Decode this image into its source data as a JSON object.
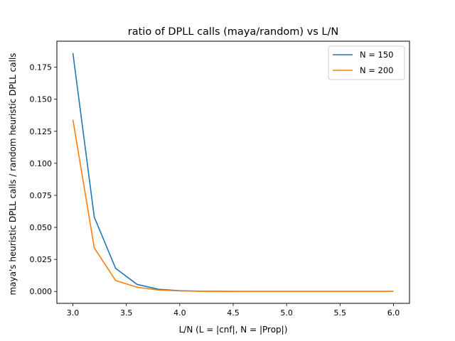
{
  "chart_data": {
    "type": "line",
    "title": "ratio of DPLL calls (maya/random) vs L/N",
    "xlabel": "L/N (L = |cnf|, N = |Prop|)",
    "ylabel": "maya's heuristic DPLL calls / random heuristic DPLL calls",
    "xlim": [
      2.85,
      6.15
    ],
    "ylim": [
      -0.0093,
      0.1953
    ],
    "xticks": [
      3.0,
      3.5,
      4.0,
      4.5,
      5.0,
      5.5,
      6.0
    ],
    "xtick_labels": [
      "3.0",
      "3.5",
      "4.0",
      "4.5",
      "5.0",
      "5.5",
      "6.0"
    ],
    "yticks": [
      0.0,
      0.025,
      0.05,
      0.075,
      0.1,
      0.125,
      0.15,
      0.175
    ],
    "ytick_labels": [
      "0.000",
      "0.025",
      "0.050",
      "0.075",
      "0.100",
      "0.125",
      "0.150",
      "0.175"
    ],
    "grid": false,
    "legend_position": "upper right",
    "x": [
      3.0,
      3.2,
      3.4,
      3.6,
      3.8,
      4.0,
      4.2,
      4.4,
      4.6,
      4.8,
      5.0,
      5.2,
      5.4,
      5.6,
      5.8,
      6.0
    ],
    "series": [
      {
        "name": "N = 150",
        "color": "#1f77b4",
        "values": [
          0.186,
          0.058,
          0.018,
          0.0055,
          0.0017,
          0.0006,
          0.0002,
          0.0001,
          5e-05,
          3e-05,
          2e-05,
          1e-05,
          1e-05,
          1e-05,
          1e-05,
          1e-05
        ]
      },
      {
        "name": "N = 200",
        "color": "#ff7f0e",
        "values": [
          0.134,
          0.034,
          0.0085,
          0.0033,
          0.0011,
          0.0004,
          0.0001,
          5e-05,
          2e-05,
          1e-05,
          1e-05,
          1e-05,
          1e-05,
          1e-05,
          1e-05,
          1e-05
        ]
      }
    ]
  }
}
